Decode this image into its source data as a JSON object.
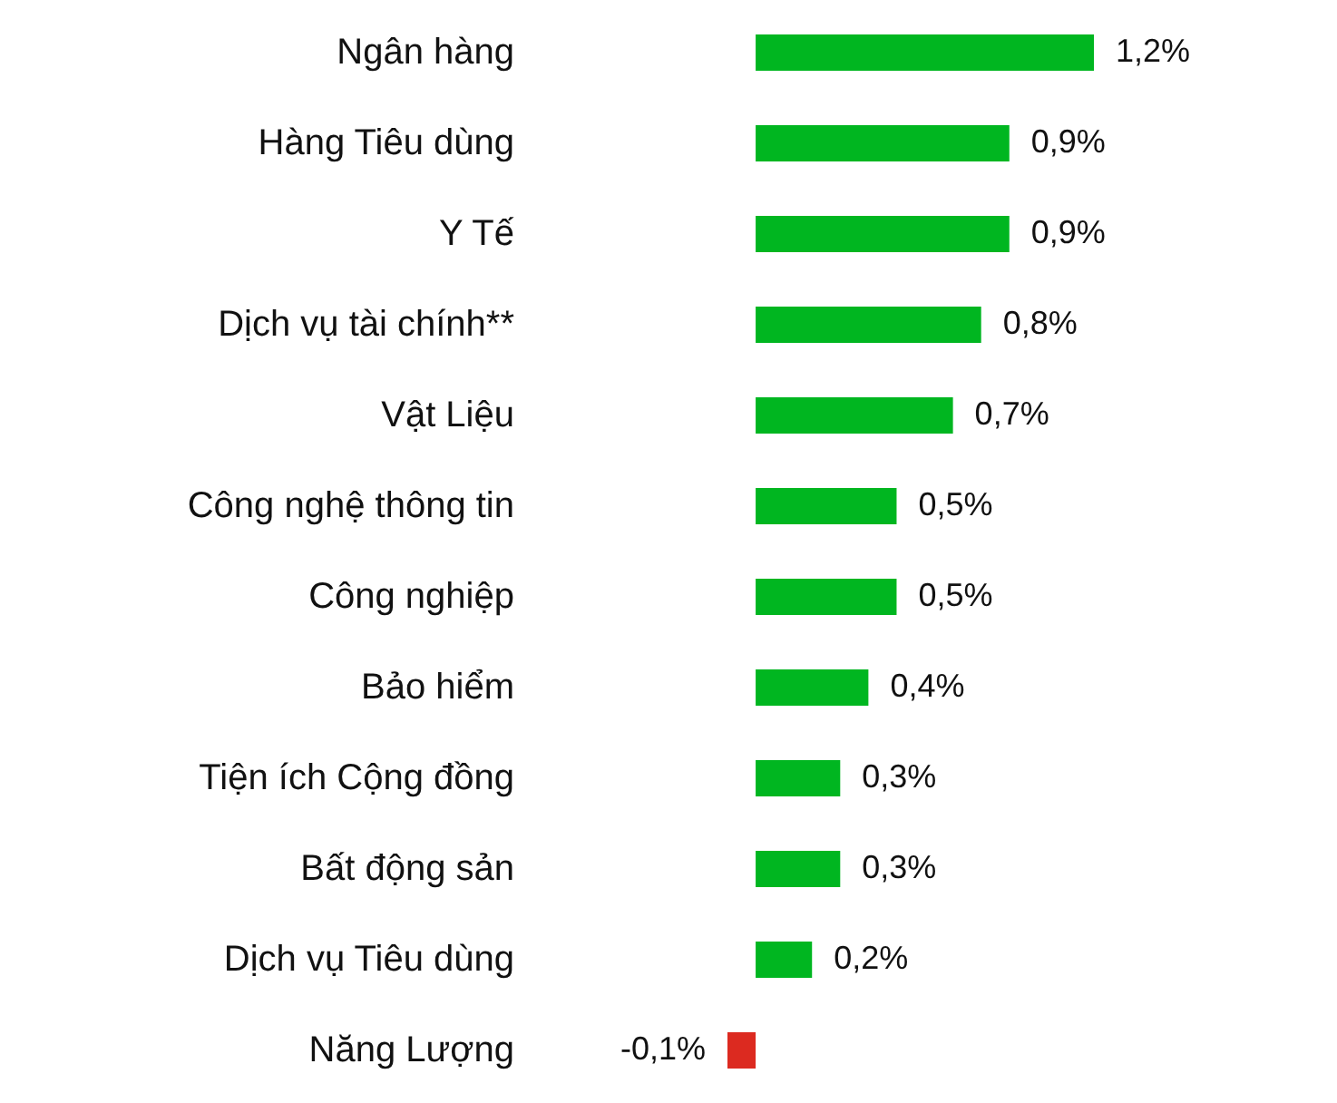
{
  "chart_data": {
    "type": "bar",
    "orientation": "horizontal",
    "tick_labels": "y",
    "categories": [
      "Ngân hàng",
      "Hàng Tiêu dùng",
      "Y Tế",
      "Dịch vụ tài chính**",
      "Vật Liệu",
      "Công nghệ thông tin",
      "Công nghiệp",
      "Bảo hiểm",
      "Tiện ích Cộng đồng",
      "Bất động sản",
      "Dịch vụ Tiêu dùng",
      "Năng Lượng"
    ],
    "values": [
      1.2,
      0.9,
      0.9,
      0.8,
      0.7,
      0.5,
      0.5,
      0.4,
      0.3,
      0.3,
      0.2,
      -0.1
    ],
    "colors": [
      "#00b620",
      "#00b620",
      "#00b620",
      "#00b620",
      "#00b620",
      "#00b620",
      "#00b620",
      "#00b620",
      "#00b620",
      "#00b620",
      "#00b620",
      "#dc2a20"
    ],
    "value_labels": [
      "1,2%",
      "0,9%",
      "0,9%",
      "0,8%",
      "0,7%",
      "0,5%",
      "0,5%",
      "0,4%",
      "0,3%",
      "0,3%",
      "0,2%",
      "-0,1%"
    ]
  }
}
